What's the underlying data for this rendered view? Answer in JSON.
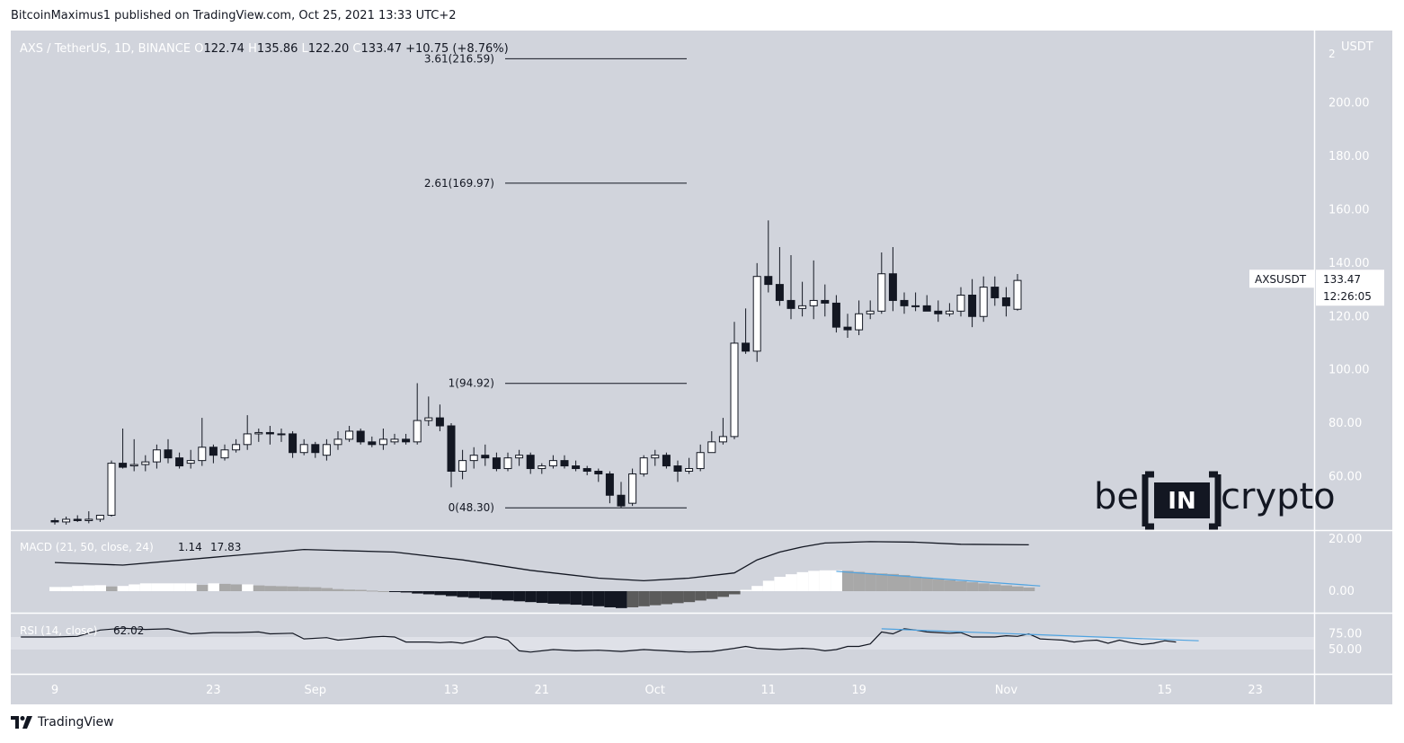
{
  "header": {
    "published": "BitcoinMaximus1 published on TradingView.com, Oct 25, 2021 13:33 UTC+2"
  },
  "legend": {
    "symbol": "AXS / TetherUS, 1D, BINANCE",
    "o_label": "O",
    "o_value": "122.74",
    "h_label": "H",
    "h_value": "135.86",
    "l_label": "L",
    "l_value": "122.20",
    "c_label": "C",
    "c_value": "133.47",
    "change": "+10.75 (+8.76%)"
  },
  "price_scale": {
    "currency": "USDT",
    "top_partial": "2",
    "ticks": [
      "200.00",
      "180.00",
      "160.00",
      "140.00",
      "120.00",
      "100.00",
      "80.00",
      "60.00"
    ],
    "ticker": "AXSUSDT",
    "last_price": "133.47",
    "countdown": "12:26:05"
  },
  "fib_levels": [
    {
      "label": "3.61(216.59)",
      "value": 216.59
    },
    {
      "label": "2.61(169.97)",
      "value": 169.97
    },
    {
      "label": "1(94.92)",
      "value": 94.92
    },
    {
      "label": "0(48.30)",
      "value": 48.3
    }
  ],
  "watermark": {
    "left": "be",
    "mid": "IN",
    "right": "crypto"
  },
  "macd": {
    "label": "MACD (21, 50, close, 24)",
    "v1": "1.14",
    "v2": "17.83",
    "ticks": [
      "20.00",
      "0.00"
    ]
  },
  "rsi": {
    "label": "RSI (14, close)",
    "value": "62.02",
    "ticks": [
      "75.00",
      "50.00"
    ]
  },
  "x_axis": {
    "ticks": [
      {
        "label": "9",
        "i": 0
      },
      {
        "label": "23",
        "i": 14
      },
      {
        "label": "Sep",
        "i": 23
      },
      {
        "label": "13",
        "i": 35
      },
      {
        "label": "21",
        "i": 43
      },
      {
        "label": "Oct",
        "i": 53
      },
      {
        "label": "11",
        "i": 63
      },
      {
        "label": "19",
        "i": 71
      },
      {
        "label": "Nov",
        "i": 84
      },
      {
        "label": "15",
        "i": 98
      },
      {
        "label": "23",
        "i": 106
      }
    ]
  },
  "footer": {
    "brand": "TradingView"
  },
  "colors": {
    "pane_bg": "#d1d4dc",
    "up": "#ffffff",
    "down": "#131722",
    "line": "#131722",
    "trend": "#4fa3e0",
    "hist_up": "#ffffff",
    "hist_up_fade": "#a8a8a8",
    "hist_down": "#131722",
    "hist_down_fade": "#5b5b5b"
  },
  "chart_data": {
    "type": "candlestick",
    "title": "AXS / TetherUS, 1D, BINANCE",
    "ylabel": "USDT",
    "ylim": [
      40,
      225
    ],
    "candles": [
      [
        43.5,
        44.5,
        42.0,
        43.0
      ],
      [
        43.0,
        45.0,
        42.0,
        44.0
      ],
      [
        44.0,
        45.5,
        43.0,
        43.5
      ],
      [
        43.5,
        47.0,
        42.5,
        44.0
      ],
      [
        44.0,
        45.0,
        43.0,
        45.5
      ],
      [
        45.5,
        66.0,
        45.0,
        65.0
      ],
      [
        65.0,
        78.0,
        63.0,
        63.5
      ],
      [
        64.0,
        74.0,
        62.0,
        64.5
      ],
      [
        64.5,
        68.0,
        62.0,
        65.5
      ],
      [
        65.5,
        72.0,
        63.0,
        70.0
      ],
      [
        70.0,
        74.0,
        65.0,
        67.0
      ],
      [
        67.0,
        69.0,
        63.0,
        64.0
      ],
      [
        65.0,
        70.0,
        63.0,
        66.0
      ],
      [
        66.0,
        82.0,
        64.0,
        71.0
      ],
      [
        71.0,
        72.0,
        65.0,
        68.0
      ],
      [
        67.0,
        72.0,
        66.0,
        70.0
      ],
      [
        70.0,
        74.0,
        69.0,
        72.0
      ],
      [
        72.0,
        83.0,
        70.0,
        76.0
      ],
      [
        76.0,
        78.0,
        73.0,
        76.5
      ],
      [
        76.5,
        79.0,
        72.0,
        76.0
      ],
      [
        76.0,
        78.0,
        73.0,
        76.0
      ],
      [
        76.0,
        77.0,
        67.0,
        69.0
      ],
      [
        69.0,
        74.0,
        68.0,
        72.0
      ],
      [
        72.0,
        73.0,
        67.0,
        69.0
      ],
      [
        68.0,
        74.0,
        66.0,
        72.0
      ],
      [
        72.0,
        77.0,
        70.0,
        74.0
      ],
      [
        74.0,
        79.0,
        73.0,
        77.0
      ],
      [
        77.0,
        78.0,
        72.0,
        73.0
      ],
      [
        73.0,
        75.0,
        71.0,
        72.0
      ],
      [
        72.0,
        78.0,
        70.0,
        74.0
      ],
      [
        73.0,
        76.0,
        72.0,
        74.0
      ],
      [
        74.0,
        76.0,
        72.0,
        73.0
      ],
      [
        73.0,
        95.0,
        72.0,
        81.0
      ],
      [
        81.0,
        90.0,
        79.0,
        82.0
      ],
      [
        82.0,
        87.0,
        77.0,
        79.0
      ],
      [
        79.0,
        80.0,
        56.0,
        62.0
      ],
      [
        62.0,
        70.0,
        59.0,
        66.0
      ],
      [
        66.0,
        71.0,
        63.0,
        68.0
      ],
      [
        68.0,
        72.0,
        64.0,
        67.0
      ],
      [
        67.0,
        69.0,
        62.0,
        63.0
      ],
      [
        63.0,
        69.0,
        62.0,
        67.0
      ],
      [
        67.0,
        70.0,
        64.0,
        68.0
      ],
      [
        68.0,
        69.0,
        61.0,
        63.0
      ],
      [
        63.0,
        65.0,
        61.0,
        64.0
      ],
      [
        64.0,
        68.0,
        63.0,
        66.0
      ],
      [
        66.0,
        68.0,
        63.0,
        64.0
      ],
      [
        64.0,
        66.0,
        62.0,
        63.0
      ],
      [
        63.0,
        64.0,
        60.5,
        62.0
      ],
      [
        62.0,
        63.0,
        58.0,
        61.0
      ],
      [
        61.0,
        62.0,
        50.0,
        53.0
      ],
      [
        53.0,
        58.0,
        48.3,
        49.0
      ],
      [
        50.0,
        63.0,
        49.0,
        61.0
      ],
      [
        61.0,
        68.0,
        60.0,
        67.0
      ],
      [
        67.0,
        70.0,
        64.0,
        68.0
      ],
      [
        68.0,
        69.0,
        63.0,
        64.0
      ],
      [
        64.0,
        66.0,
        58.0,
        62.0
      ],
      [
        62.0,
        67.0,
        61.0,
        63.0
      ],
      [
        63.0,
        72.0,
        62.0,
        69.0
      ],
      [
        69.0,
        77.0,
        69.0,
        73.0
      ],
      [
        73.0,
        82.0,
        72.0,
        75.0
      ],
      [
        75.0,
        118.0,
        74.0,
        110.0
      ],
      [
        110.0,
        123.0,
        106.0,
        107.0
      ],
      [
        107.0,
        140.0,
        103.0,
        135.0
      ],
      [
        135.0,
        156.0,
        129.0,
        132.0
      ],
      [
        132.0,
        146.0,
        124.0,
        126.0
      ],
      [
        126.0,
        143.0,
        119.0,
        123.0
      ],
      [
        123.0,
        133.0,
        120.0,
        124.0
      ],
      [
        124.0,
        141.0,
        119.0,
        126.0
      ],
      [
        126.0,
        132.0,
        120.0,
        125.0
      ],
      [
        125.0,
        128.0,
        114.0,
        116.0
      ],
      [
        116.0,
        121.0,
        112.0,
        115.0
      ],
      [
        115.0,
        126.0,
        113.0,
        121.0
      ],
      [
        121.0,
        126.0,
        119.0,
        122.0
      ],
      [
        122.0,
        144.0,
        121.0,
        136.0
      ],
      [
        136.0,
        146.0,
        122.0,
        126.0
      ],
      [
        126.0,
        129.0,
        121.0,
        124.0
      ],
      [
        124.0,
        129.0,
        122.0,
        124.0
      ],
      [
        124.0,
        128.0,
        122.0,
        122.0
      ],
      [
        122.0,
        126.0,
        118.0,
        121.0
      ],
      [
        121.0,
        125.0,
        120.0,
        122.0
      ],
      [
        122.0,
        131.0,
        120.0,
        128.0
      ],
      [
        128.0,
        134.0,
        116.0,
        120.0
      ],
      [
        120.0,
        135.0,
        118.0,
        131.0
      ],
      [
        131.0,
        135.0,
        124.0,
        127.0
      ],
      [
        127.0,
        131.0,
        120.0,
        124.0
      ],
      [
        122.7,
        135.9,
        122.2,
        133.5
      ]
    ],
    "macd_line": [
      [
        0,
        11
      ],
      [
        6,
        10
      ],
      [
        14,
        13
      ],
      [
        22,
        16
      ],
      [
        30,
        15
      ],
      [
        36,
        12
      ],
      [
        42,
        8
      ],
      [
        48,
        5
      ],
      [
        52,
        4
      ],
      [
        56,
        5
      ],
      [
        60,
        7
      ],
      [
        62,
        12
      ],
      [
        64,
        15
      ],
      [
        66,
        17
      ],
      [
        68,
        18.5
      ],
      [
        72,
        19
      ],
      [
        76,
        18.8
      ],
      [
        80,
        18
      ],
      [
        86,
        17.8
      ]
    ],
    "macd_hist": [
      1.6,
      1.6,
      2.0,
      2.2,
      2.3,
      1.8,
      2.0,
      2.6,
      3.0,
      3.0,
      3.0,
      3.0,
      3.0,
      2.4,
      3.0,
      2.8,
      2.6,
      2.6,
      2.2,
      2.0,
      1.9,
      1.8,
      1.6,
      1.5,
      1.2,
      0.8,
      0.6,
      0.5,
      0.2,
      0.0,
      -0.2,
      -0.5,
      -0.9,
      -1.2,
      -1.5,
      -1.9,
      -2.3,
      -2.6,
      -3.0,
      -3.3,
      -3.6,
      -3.9,
      -4.2,
      -4.5,
      -4.8,
      -5.0,
      -5.2,
      -5.5,
      -5.8,
      -6.2,
      -6.5,
      -6.2,
      -5.8,
      -5.4,
      -5.0,
      -4.6,
      -4.2,
      -3.6,
      -3.0,
      -2.2,
      -1.2,
      0.5,
      2.0,
      4.0,
      5.5,
      6.5,
      7.3,
      7.8,
      8.0,
      8.0,
      7.8,
      7.4,
      7.0,
      6.8,
      6.6,
      6.2,
      5.6,
      5.2,
      4.6,
      4.2,
      3.8,
      3.4,
      3.0,
      2.6,
      2.2,
      1.8,
      1.4
    ],
    "macd_trendline": [
      [
        69,
        7.6
      ],
      [
        87,
        2.0
      ]
    ],
    "rsi": [
      [
        -3,
        70
      ],
      [
        0,
        70
      ],
      [
        2,
        71
      ],
      [
        4,
        81
      ],
      [
        6,
        84
      ],
      [
        8,
        82
      ],
      [
        10,
        83
      ],
      [
        12,
        75
      ],
      [
        14,
        77
      ],
      [
        16,
        77
      ],
      [
        18,
        78
      ],
      [
        19,
        75
      ],
      [
        21,
        76
      ],
      [
        22,
        67
      ],
      [
        24,
        69
      ],
      [
        25,
        65
      ],
      [
        27,
        68
      ],
      [
        28,
        70
      ],
      [
        29,
        71
      ],
      [
        30,
        70
      ],
      [
        31,
        62
      ],
      [
        33,
        62
      ],
      [
        34,
        61
      ],
      [
        35,
        62
      ],
      [
        36,
        60
      ],
      [
        37,
        64
      ],
      [
        38,
        70
      ],
      [
        39,
        70
      ],
      [
        40,
        65
      ],
      [
        41,
        48
      ],
      [
        42,
        46
      ],
      [
        44,
        50
      ],
      [
        46,
        48
      ],
      [
        48,
        49
      ],
      [
        50,
        47
      ],
      [
        52,
        50
      ],
      [
        54,
        48
      ],
      [
        56,
        46
      ],
      [
        58,
        47
      ],
      [
        60,
        52
      ],
      [
        61,
        55
      ],
      [
        62,
        52
      ],
      [
        64,
        50
      ],
      [
        66,
        52
      ],
      [
        67,
        51
      ],
      [
        68,
        48
      ],
      [
        69,
        50
      ],
      [
        70,
        55
      ],
      [
        71,
        55
      ],
      [
        72,
        59
      ],
      [
        73,
        78
      ],
      [
        74,
        75
      ],
      [
        75,
        83
      ],
      [
        76,
        81
      ],
      [
        77,
        78
      ],
      [
        78,
        77
      ],
      [
        79,
        76
      ],
      [
        80,
        77
      ],
      [
        81,
        70
      ],
      [
        82,
        70
      ],
      [
        83,
        70
      ],
      [
        84,
        72
      ],
      [
        85,
        71
      ],
      [
        86,
        75
      ],
      [
        87,
        67
      ],
      [
        88,
        66
      ],
      [
        89,
        65
      ],
      [
        90,
        62
      ],
      [
        91,
        64
      ],
      [
        92,
        65
      ],
      [
        93,
        60
      ],
      [
        94,
        65
      ],
      [
        95,
        61
      ],
      [
        96,
        58
      ],
      [
        97,
        60
      ],
      [
        98,
        64
      ],
      [
        99,
        62
      ]
    ],
    "rsi_trendline": [
      [
        73,
        83
      ],
      [
        101,
        64
      ]
    ],
    "rsi_band": [
      70,
      50
    ]
  }
}
